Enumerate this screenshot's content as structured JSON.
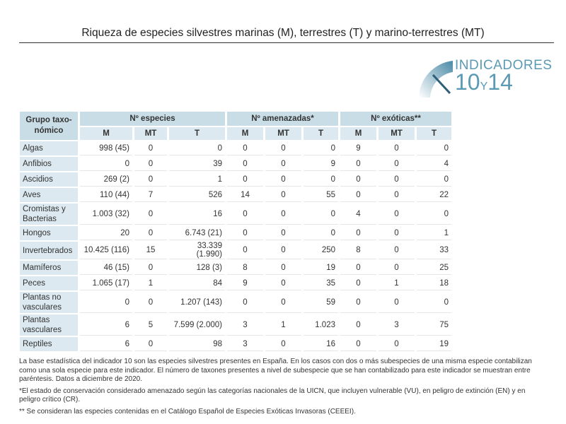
{
  "title": "Riqueza de especies silvestres marinas (M), terrestres (T) y marino-terrestres (MT)",
  "logo": {
    "line1": "INDICADORES",
    "num1": "10",
    "y": "Y",
    "num2": "14"
  },
  "table": {
    "group_header": "Grupo taxo-nómico",
    "groups": [
      "Nº especies",
      "Nº amenazadas*",
      "Nº exóticas**"
    ],
    "sub": [
      "M",
      "MT",
      "T"
    ],
    "rows": [
      {
        "label": "Algas",
        "v": [
          "998 (45)",
          "0",
          "0",
          "0",
          "0",
          "0",
          "9",
          "0",
          "0"
        ]
      },
      {
        "label": "Anfibios",
        "v": [
          "0",
          "0",
          "39",
          "0",
          "0",
          "9",
          "0",
          "0",
          "4"
        ]
      },
      {
        "label": "Ascidios",
        "v": [
          "269 (2)",
          "0",
          "1",
          "0",
          "0",
          "0",
          "0",
          "0",
          "0"
        ]
      },
      {
        "label": "Aves",
        "v": [
          "110 (44)",
          "7",
          "526",
          "14",
          "0",
          "55",
          "0",
          "0",
          "22"
        ]
      },
      {
        "label": "Cromistas y Bacterias",
        "v": [
          "1.003 (32)",
          "0",
          "16",
          "0",
          "0",
          "0",
          "4",
          "0",
          "0"
        ]
      },
      {
        "label": "Hongos",
        "v": [
          "20",
          "0",
          "6.743 (21)",
          "0",
          "0",
          "0",
          "0",
          "0",
          "1"
        ]
      },
      {
        "label": "Invertebrados",
        "v": [
          "10.425 (116)",
          "15",
          "33.339 (1.990)",
          "0",
          "0",
          "250",
          "8",
          "0",
          "33"
        ]
      },
      {
        "label": "Mamíferos",
        "v": [
          "46 (15)",
          "0",
          "128 (3)",
          "8",
          "0",
          "19",
          "0",
          "0",
          "25"
        ]
      },
      {
        "label": "Peces",
        "v": [
          "1.065 (17)",
          "1",
          "84",
          "9",
          "0",
          "35",
          "0",
          "1",
          "18"
        ]
      },
      {
        "label": "Plantas no vasculares",
        "v": [
          "0",
          "0",
          "1.207 (143)",
          "0",
          "0",
          "59",
          "0",
          "0",
          "0"
        ]
      },
      {
        "label": "Plantas vasculares",
        "v": [
          "6",
          "5",
          "7.599 (2.000)",
          "3",
          "1",
          "1.023",
          "0",
          "3",
          "75"
        ]
      },
      {
        "label": "Reptiles",
        "v": [
          "6",
          "0",
          "98",
          "3",
          "0",
          "16",
          "0",
          "0",
          "19"
        ]
      }
    ]
  },
  "notes": [
    "La base estadística del indicador 10 son las especies silvestres presentes en España. En los casos con dos o más subespecies de una misma especie contabilizan como una sola especie para este indicador. El número de taxones presentes a nivel de subespecie que se han contabilizado para este indicador se muestran entre paréntesis. Datos a diciembre de 2020.",
    "*El estado de conservación considerado amenazado según las categorías nacionales de la UICN, que incluyen vulnerable (VU), en peligro de extinción (EN) y en peligro crítico (CR).",
    "** Se consideran las especies contenidas en el Catálogo Español de Especies Exóticas Invasoras (CEEEI)."
  ]
}
